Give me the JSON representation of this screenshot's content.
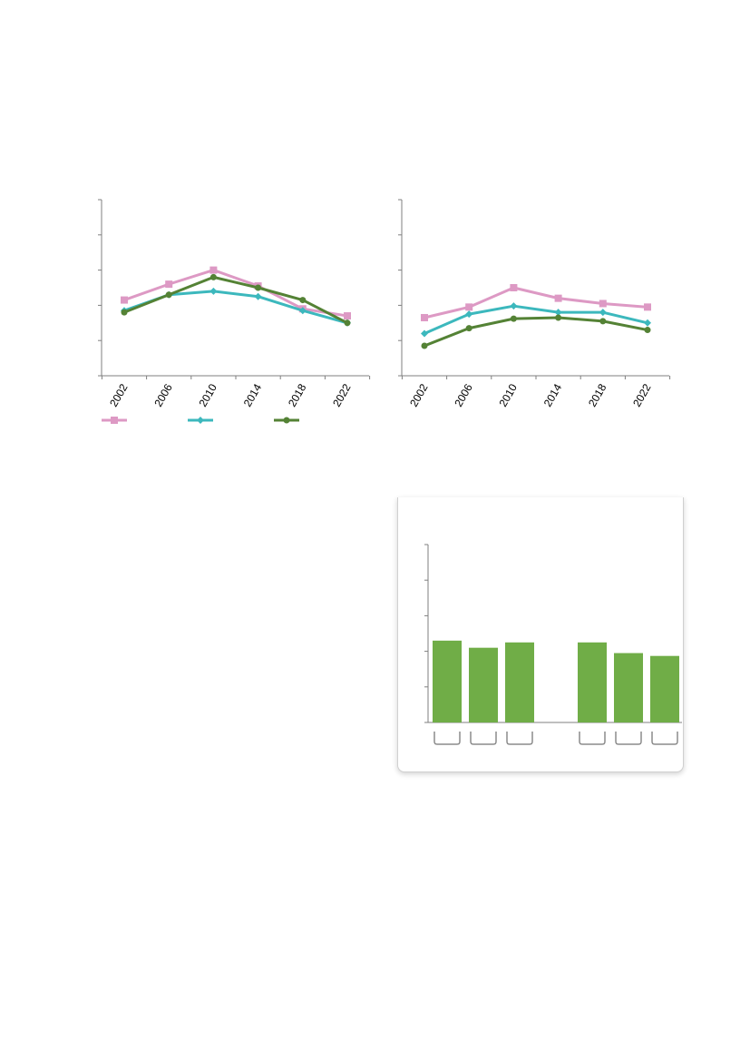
{
  "colors": {
    "series_pink": "#dd99c4",
    "series_teal": "#3cb8bd",
    "series_green": "#548235",
    "bar_green": "#70ad47"
  },
  "chart_data": [
    {
      "type": "line",
      "x": [
        "2002",
        "2006",
        "2010",
        "2014",
        "2018",
        "2022"
      ],
      "ylim": [
        0,
        5
      ],
      "series": [
        {
          "marker": "square",
          "color": "#dd99c4",
          "values": [
            2.15,
            2.6,
            3.0,
            2.55,
            1.9,
            1.7
          ]
        },
        {
          "marker": "diamond",
          "color": "#3cb8bd",
          "values": [
            1.85,
            2.3,
            2.4,
            2.25,
            1.85,
            1.5
          ]
        },
        {
          "marker": "circle",
          "color": "#548235",
          "values": [
            1.8,
            2.3,
            2.8,
            2.5,
            2.15,
            1.5
          ]
        }
      ],
      "legend_placement": "bottom"
    },
    {
      "type": "line",
      "x": [
        "2002",
        "2006",
        "2010",
        "2014",
        "2018",
        "2022"
      ],
      "ylim": [
        0,
        5
      ],
      "series": [
        {
          "marker": "square",
          "color": "#dd99c4",
          "values": [
            1.65,
            1.95,
            2.5,
            2.2,
            2.05,
            1.95
          ]
        },
        {
          "marker": "diamond",
          "color": "#3cb8bd",
          "values": [
            1.2,
            1.75,
            1.98,
            1.8,
            1.8,
            1.5
          ]
        },
        {
          "marker": "circle",
          "color": "#548235",
          "values": [
            0.85,
            1.35,
            1.62,
            1.65,
            1.55,
            1.3
          ]
        }
      ]
    },
    {
      "type": "bar",
      "ylim": [
        0,
        5
      ],
      "groups": [
        {
          "values": [
            2.3,
            2.1,
            2.25
          ]
        },
        {
          "values": [
            2.25,
            1.95,
            1.87
          ]
        }
      ],
      "color": "#70ad47"
    }
  ]
}
